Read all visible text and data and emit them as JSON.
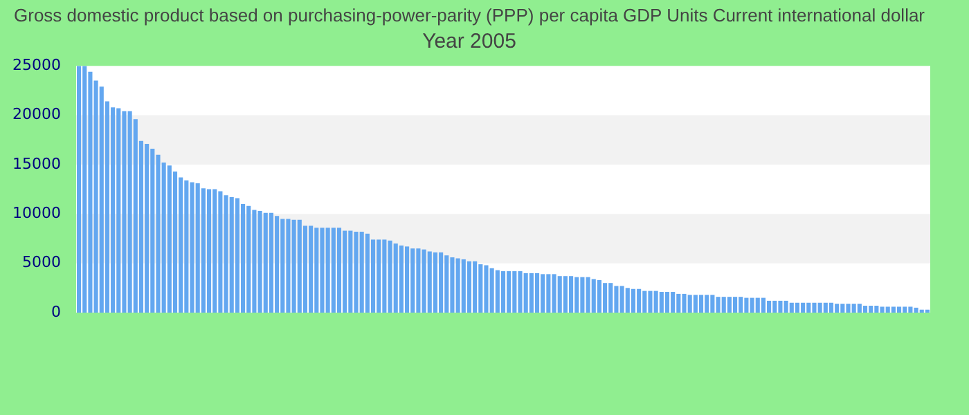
{
  "chart_data": {
    "type": "bar",
    "title": "Gross domestic product based on purchasing-power-parity (PPP) per capita GDP Units Current international dollar",
    "subtitle": "Year 2005",
    "categories": [
      null,
      null,
      null,
      null,
      null,
      null,
      null,
      null,
      null,
      null,
      null,
      null,
      null,
      null,
      null,
      null,
      null,
      null,
      null,
      null,
      null,
      null,
      null,
      null,
      null,
      null,
      null,
      null,
      null,
      null,
      null,
      null,
      null,
      null,
      null,
      null,
      null,
      null,
      null,
      null,
      null,
      null,
      null,
      null,
      null,
      null,
      null,
      null,
      null,
      null,
      null,
      null,
      null,
      null,
      null,
      null,
      null,
      null,
      null,
      null,
      null,
      null,
      null,
      null,
      null,
      null,
      null,
      null,
      null,
      null,
      null,
      null,
      null,
      null,
      null,
      null,
      null,
      null,
      null,
      null,
      null,
      null,
      null,
      null,
      null,
      null,
      null,
      null,
      null,
      null,
      null,
      null,
      null,
      null,
      null,
      null,
      null,
      null,
      null,
      null,
      null,
      null,
      null,
      null,
      null,
      null,
      null,
      null,
      null,
      null,
      null,
      null,
      null,
      null,
      null,
      null,
      null,
      null,
      null,
      null,
      null,
      null,
      null,
      null,
      null,
      null,
      null,
      null,
      null,
      null,
      null,
      null,
      null,
      null,
      null,
      null,
      null,
      null,
      null,
      null,
      null,
      null,
      null,
      null,
      null,
      null,
      null,
      null,
      null,
      null,
      null
    ],
    "values": [
      25000,
      25000,
      24400,
      23500,
      22900,
      21400,
      20800,
      20700,
      20400,
      20400,
      19600,
      17400,
      17100,
      16600,
      16000,
      15200,
      14900,
      14300,
      13700,
      13400,
      13200,
      13100,
      12600,
      12500,
      12500,
      12300,
      11900,
      11700,
      11600,
      11000,
      10800,
      10400,
      10300,
      10100,
      10100,
      9800,
      9500,
      9500,
      9400,
      9400,
      8800,
      8800,
      8600,
      8600,
      8600,
      8600,
      8600,
      8300,
      8300,
      8200,
      8200,
      8000,
      7400,
      7400,
      7400,
      7300,
      7000,
      6800,
      6700,
      6500,
      6500,
      6400,
      6200,
      6100,
      6100,
      5800,
      5600,
      5500,
      5400,
      5200,
      5200,
      4900,
      4800,
      4500,
      4300,
      4200,
      4200,
      4200,
      4200,
      4000,
      4000,
      4000,
      3900,
      3900,
      3900,
      3700,
      3700,
      3700,
      3600,
      3600,
      3600,
      3400,
      3300,
      3000,
      3000,
      2700,
      2700,
      2500,
      2400,
      2400,
      2200,
      2200,
      2200,
      2100,
      2100,
      2100,
      1900,
      1900,
      1800,
      1800,
      1800,
      1800,
      1800,
      1600,
      1600,
      1600,
      1600,
      1600,
      1500,
      1500,
      1500,
      1500,
      1200,
      1200,
      1200,
      1200,
      1000,
      1000,
      1000,
      1000,
      1000,
      1000,
      1000,
      1000,
      900,
      900,
      900,
      900,
      900,
      700,
      700,
      700,
      600,
      600,
      600,
      600,
      600,
      600,
      500,
      300,
      300
    ],
    "color": "#63a7f0",
    "ylim": [
      0,
      25000
    ],
    "yticks": [
      0,
      5000,
      10000,
      15000,
      20000,
      25000
    ],
    "legend": false
  }
}
